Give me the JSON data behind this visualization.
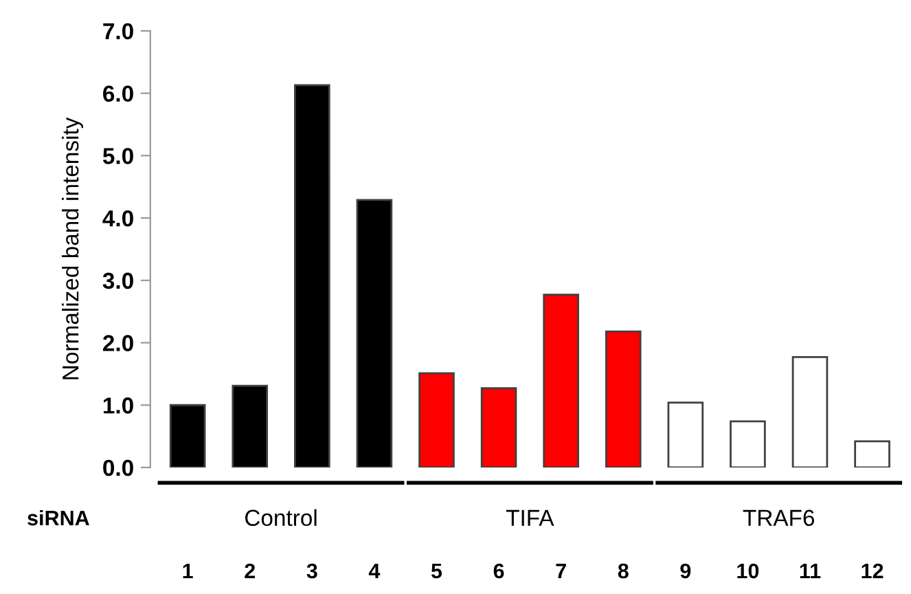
{
  "chart_data": {
    "type": "bar",
    "ylabel": "Normalized band intensity",
    "categories": [
      "1",
      "2",
      "3",
      "4",
      "5",
      "6",
      "7",
      "8",
      "9",
      "10",
      "11",
      "12"
    ],
    "values": [
      1.0,
      1.31,
      6.13,
      4.29,
      1.51,
      1.27,
      2.77,
      2.18,
      1.04,
      0.74,
      1.77,
      0.42
    ],
    "colors": [
      "#000000",
      "#000000",
      "#000000",
      "#000000",
      "#ff0000",
      "#ff0000",
      "#ff0000",
      "#ff0000",
      "#ffffff",
      "#ffffff",
      "#ffffff",
      "#ffffff"
    ],
    "ylim": [
      0,
      7
    ],
    "yticks": [
      {
        "value": 0,
        "label": "0.0"
      },
      {
        "value": 1,
        "label": "1.0"
      },
      {
        "value": 2,
        "label": "2.0"
      },
      {
        "value": 3,
        "label": "3.0"
      },
      {
        "value": 4,
        "label": "4.0"
      },
      {
        "value": 5,
        "label": "5.0"
      },
      {
        "value": 6,
        "label": "6.0"
      },
      {
        "value": 7,
        "label": "7.0"
      }
    ],
    "grid": false,
    "annotations": [
      "siRNA",
      "Control",
      "TIFA",
      "TRAF6"
    ]
  }
}
